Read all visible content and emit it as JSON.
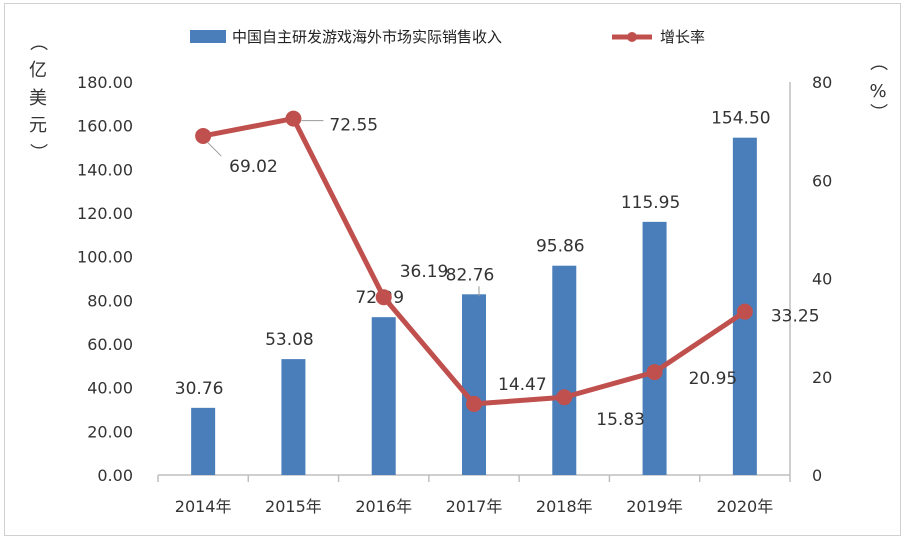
{
  "chart_data": {
    "type": "bar",
    "categories": [
      "2014年",
      "2015年",
      "2016年",
      "2017年",
      "2018年",
      "2019年",
      "2020年"
    ],
    "series": [
      {
        "name": "中国自主研发游戏海外市场实际销售收入",
        "type": "bar",
        "axis": "left",
        "values": [
          30.76,
          53.08,
          72.29,
          82.76,
          95.86,
          115.95,
          154.5
        ],
        "labels": [
          "30.76",
          "53.08",
          "72.29",
          "82.76",
          "95.86",
          "115.95",
          "154.50"
        ]
      },
      {
        "name": "增长率",
        "type": "line",
        "axis": "right",
        "values": [
          69.02,
          72.55,
          36.19,
          14.47,
          15.83,
          20.95,
          33.25
        ],
        "labels": [
          "69.02",
          "72.55",
          "36.19",
          "14.47",
          "15.83",
          "20.95",
          "33.25"
        ]
      }
    ],
    "left_axis": {
      "title_chars": [
        "（",
        "亿",
        "美",
        "元",
        "）"
      ],
      "ylim": [
        0,
        180
      ],
      "ticks": [
        "0.00",
        "20.00",
        "40.00",
        "60.00",
        "80.00",
        "100.00",
        "120.00",
        "140.00",
        "160.00",
        "180.00"
      ]
    },
    "right_axis": {
      "title_chars": [
        "（",
        "%",
        "）"
      ],
      "ylim": [
        0,
        80
      ],
      "ticks": [
        "0",
        "20",
        "40",
        "60",
        "80"
      ]
    },
    "legend_position": "top-center",
    "grid": false,
    "colors": {
      "bar": "#4a7ebb",
      "line": "#c0504d",
      "axis": "#bfbfbf",
      "text": "#333333"
    }
  }
}
